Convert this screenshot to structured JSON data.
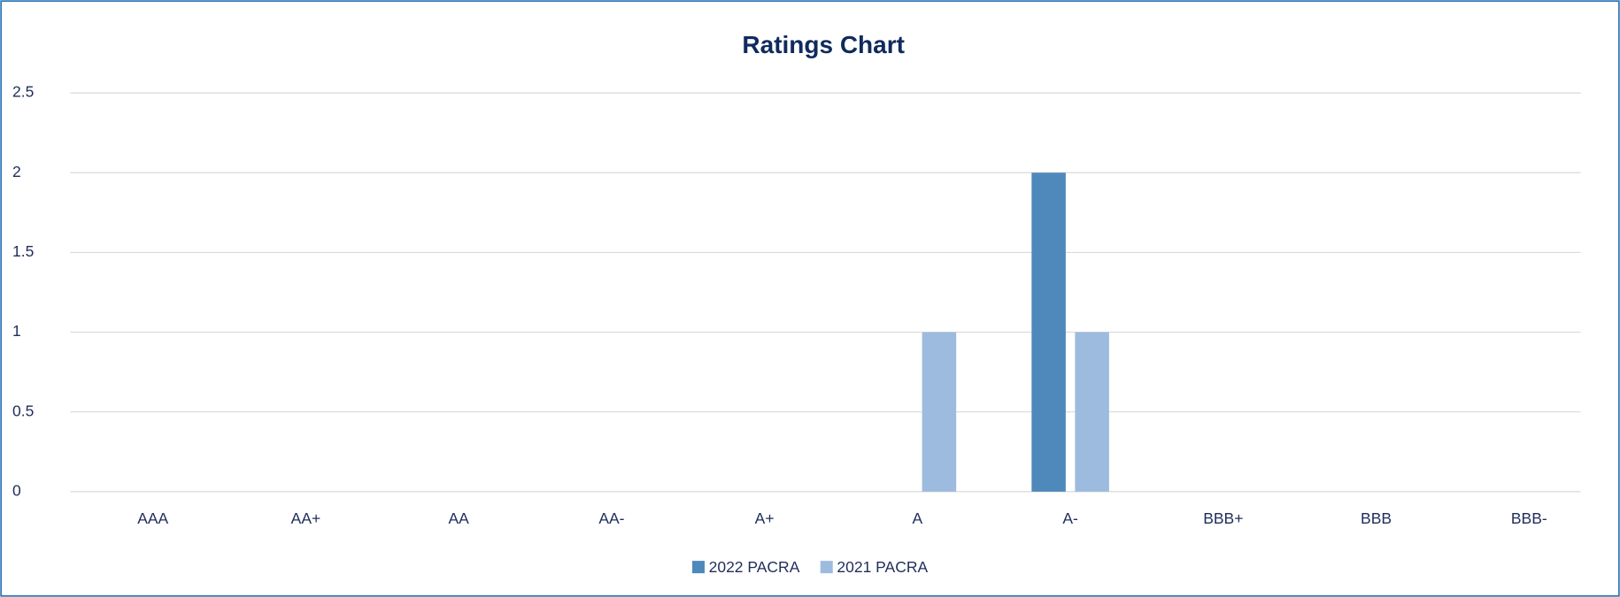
{
  "chart_data": {
    "type": "bar",
    "title": "Ratings Chart",
    "categories": [
      "AAA",
      "AA+",
      "AA",
      "AA-",
      "A+",
      "A",
      "A-",
      "BBB+",
      "BBB",
      "BBB-"
    ],
    "series": [
      {
        "name": "2022 PACRA",
        "color": "#4f88bb",
        "values": [
          0,
          0,
          0,
          0,
          0,
          0,
          2,
          0,
          0,
          0
        ]
      },
      {
        "name": "2021 PACRA",
        "color": "#9dbbdf",
        "values": [
          0,
          0,
          0,
          0,
          0,
          1,
          1,
          0,
          0,
          0
        ]
      }
    ],
    "ylim": [
      0,
      2.5
    ],
    "yticks": [
      0,
      0.5,
      1,
      1.5,
      2,
      2.5
    ],
    "grid": true,
    "legend": "bottom"
  }
}
